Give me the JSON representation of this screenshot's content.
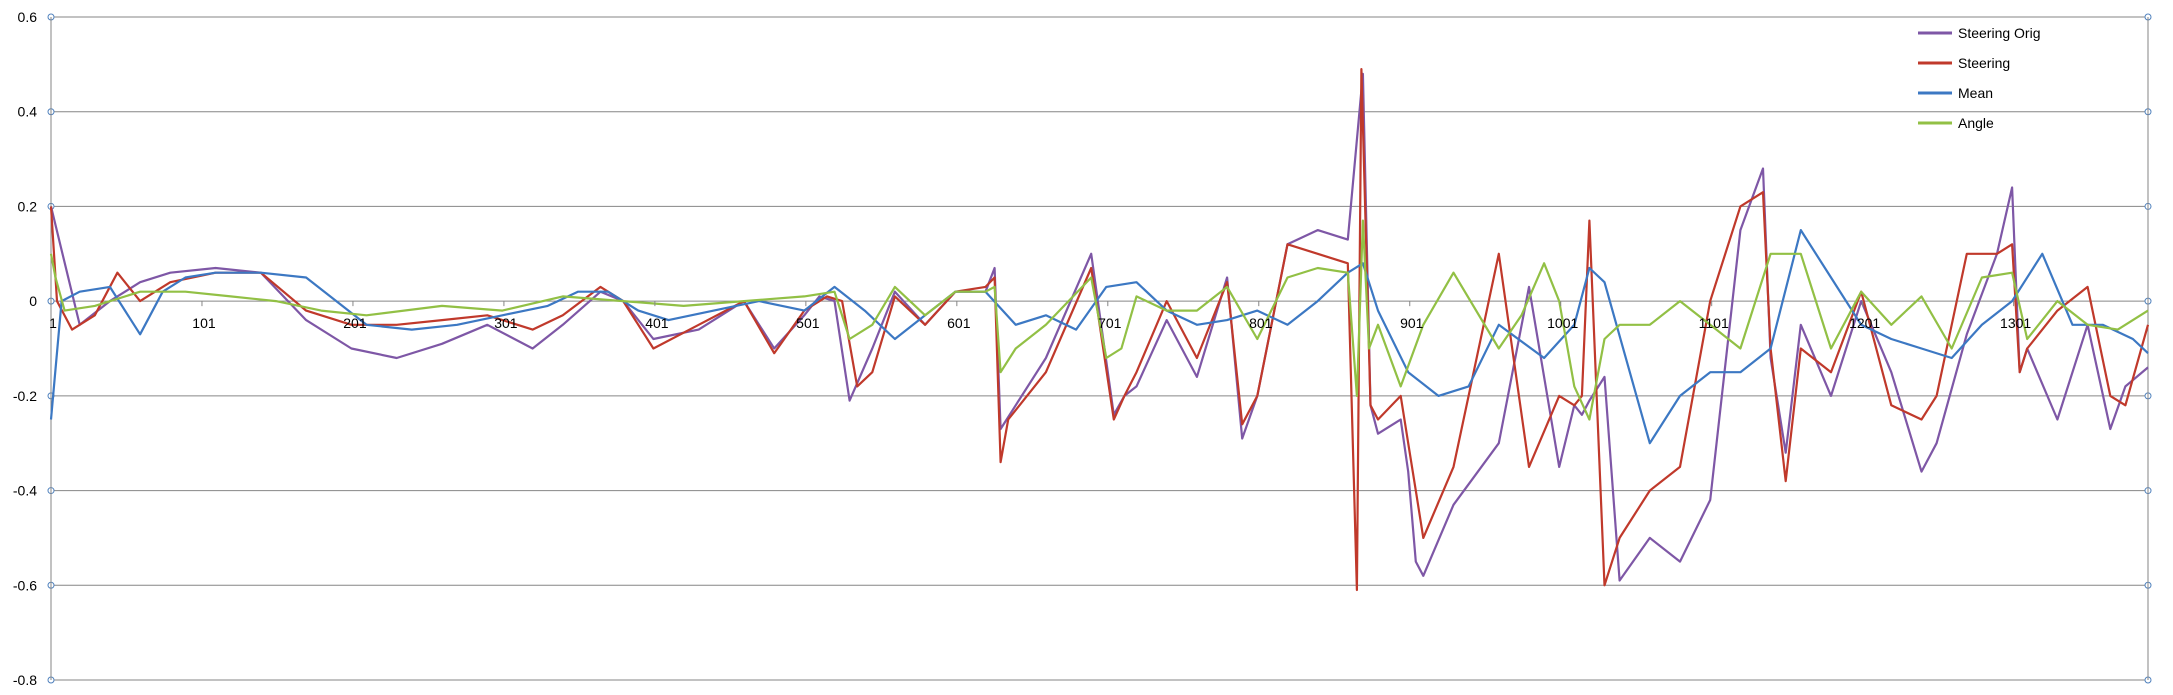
{
  "chart_data": {
    "type": "line",
    "title": "",
    "xlabel": "",
    "ylabel": "",
    "ylim": [
      -0.8,
      0.6
    ],
    "xlim": [
      1,
      1390
    ],
    "grid": true,
    "legend_position": "top-right",
    "y_ticks": [
      "0.6",
      "0.4",
      "0.2",
      "0",
      "-0.2",
      "-0.4",
      "-0.6",
      "-0.8"
    ],
    "y_tick_values": [
      0.6,
      0.4,
      0.2,
      0,
      -0.2,
      -0.4,
      -0.6,
      -0.8
    ],
    "x_ticks": [
      "1",
      "101",
      "201",
      "301",
      "401",
      "501",
      "601",
      "701",
      "801",
      "901",
      "1001",
      "1101",
      "1201",
      "1301"
    ],
    "x_tick_values": [
      1,
      101,
      201,
      301,
      401,
      501,
      601,
      701,
      801,
      901,
      1001,
      1101,
      1201,
      1301
    ],
    "colors": {
      "axis": "#868686",
      "grid": "#868686",
      "steering_orig": "#7E57A6",
      "steering": "#C0392B",
      "mean": "#3C78C3",
      "angle": "#92C045"
    },
    "series": [
      {
        "name": "Steering Orig",
        "color": "#7E57A6",
        "x": [
          1,
          20,
          40,
          60,
          80,
          110,
          140,
          170,
          200,
          230,
          260,
          290,
          320,
          340,
          365,
          380,
          400,
          430,
          460,
          480,
          500,
          510,
          520,
          530,
          545,
          560,
          580,
          600,
          620,
          626,
          630,
          640,
          660,
          690,
          705,
          712,
          720,
          740,
          760,
          780,
          790,
          800,
          820,
          840,
          860,
          870,
          875,
          880,
          895,
          900,
          905,
          910,
          930,
          960,
          980,
          1000,
          1010,
          1015,
          1020,
          1030,
          1040,
          1060,
          1080,
          1100,
          1120,
          1135,
          1140,
          1150,
          1160,
          1180,
          1200,
          1220,
          1240,
          1250,
          1270,
          1290,
          1300,
          1305,
          1310,
          1330,
          1350,
          1365,
          1375,
          1390
        ],
        "y": [
          0.2,
          -0.05,
          0.0,
          0.04,
          0.06,
          0.07,
          0.06,
          -0.04,
          -0.1,
          -0.12,
          -0.09,
          -0.05,
          -0.1,
          -0.05,
          0.02,
          0.0,
          -0.08,
          -0.06,
          0.0,
          -0.1,
          -0.03,
          0.01,
          0.0,
          -0.21,
          -0.1,
          0.02,
          -0.05,
          0.02,
          0.02,
          0.07,
          -0.27,
          -0.22,
          -0.12,
          0.1,
          -0.24,
          -0.2,
          -0.18,
          -0.04,
          -0.16,
          0.05,
          -0.29,
          -0.2,
          0.12,
          0.15,
          0.13,
          0.48,
          -0.22,
          -0.28,
          -0.25,
          -0.36,
          -0.55,
          -0.58,
          -0.43,
          -0.3,
          0.03,
          -0.35,
          -0.22,
          -0.24,
          -0.21,
          -0.16,
          -0.59,
          -0.5,
          -0.55,
          -0.42,
          0.15,
          0.28,
          -0.12,
          -0.32,
          -0.05,
          -0.2,
          0.0,
          -0.15,
          -0.36,
          -0.3,
          -0.07,
          0.1,
          0.24,
          -0.15,
          -0.1,
          -0.25,
          -0.05,
          -0.27,
          -0.18,
          -0.14
        ]
      },
      {
        "name": "Steering",
        "color": "#C0392B",
        "x": [
          1,
          5,
          15,
          30,
          45,
          60,
          80,
          110,
          140,
          170,
          200,
          230,
          260,
          290,
          320,
          340,
          365,
          380,
          400,
          430,
          460,
          480,
          500,
          515,
          525,
          535,
          545,
          560,
          580,
          600,
          620,
          626,
          630,
          635,
          660,
          690,
          705,
          712,
          720,
          740,
          760,
          780,
          790,
          800,
          820,
          840,
          860,
          866,
          869,
          875,
          880,
          895,
          900,
          905,
          910,
          930,
          960,
          980,
          1000,
          1010,
          1015,
          1020,
          1030,
          1040,
          1060,
          1080,
          1100,
          1120,
          1135,
          1140,
          1150,
          1160,
          1180,
          1200,
          1220,
          1240,
          1250,
          1270,
          1290,
          1300,
          1305,
          1310,
          1330,
          1350,
          1365,
          1375,
          1390
        ],
        "y": [
          0.2,
          0.0,
          -0.06,
          -0.03,
          0.06,
          0.0,
          0.04,
          0.06,
          0.06,
          -0.02,
          -0.05,
          -0.05,
          -0.04,
          -0.03,
          -0.06,
          -0.03,
          0.03,
          0.0,
          -0.1,
          -0.05,
          0.0,
          -0.11,
          -0.02,
          0.01,
          0.0,
          -0.18,
          -0.15,
          0.01,
          -0.05,
          0.02,
          0.03,
          0.05,
          -0.34,
          -0.25,
          -0.15,
          0.07,
          -0.25,
          -0.2,
          -0.15,
          0.0,
          -0.12,
          0.04,
          -0.26,
          -0.2,
          0.12,
          0.1,
          0.08,
          -0.61,
          0.49,
          -0.22,
          -0.25,
          -0.2,
          -0.3,
          -0.4,
          -0.5,
          -0.35,
          0.1,
          -0.35,
          -0.2,
          -0.22,
          -0.2,
          0.17,
          -0.6,
          -0.5,
          -0.4,
          -0.35,
          0.0,
          0.2,
          0.23,
          -0.1,
          -0.38,
          -0.1,
          -0.15,
          0.02,
          -0.22,
          -0.25,
          -0.2,
          0.1,
          0.1,
          0.12,
          -0.15,
          -0.1,
          -0.02,
          0.03,
          -0.2,
          -0.22,
          -0.05
        ]
      },
      {
        "name": "Mean",
        "color": "#3C78C3",
        "x": [
          1,
          8,
          20,
          40,
          60,
          75,
          90,
          110,
          140,
          170,
          190,
          210,
          240,
          270,
          300,
          330,
          350,
          370,
          390,
          410,
          440,
          470,
          500,
          520,
          540,
          560,
          580,
          600,
          620,
          640,
          660,
          680,
          700,
          720,
          740,
          760,
          780,
          800,
          820,
          840,
          860,
          870,
          880,
          900,
          920,
          940,
          960,
          990,
          1010,
          1020,
          1030,
          1060,
          1080,
          1100,
          1120,
          1140,
          1160,
          1180,
          1200,
          1220,
          1240,
          1260,
          1280,
          1300,
          1320,
          1340,
          1360,
          1380,
          1390
        ],
        "y": [
          -0.25,
          0.0,
          0.02,
          0.03,
          -0.07,
          0.02,
          0.05,
          0.06,
          0.06,
          0.05,
          0.0,
          -0.05,
          -0.06,
          -0.05,
          -0.03,
          -0.01,
          0.02,
          0.02,
          -0.02,
          -0.04,
          -0.02,
          0.0,
          -0.02,
          0.03,
          -0.02,
          -0.08,
          -0.03,
          0.02,
          0.02,
          -0.05,
          -0.03,
          -0.06,
          0.03,
          0.04,
          -0.02,
          -0.05,
          -0.04,
          -0.02,
          -0.05,
          0.0,
          0.06,
          0.08,
          -0.02,
          -0.15,
          -0.2,
          -0.18,
          -0.05,
          -0.12,
          -0.05,
          0.07,
          0.04,
          -0.3,
          -0.2,
          -0.15,
          -0.15,
          -0.1,
          0.15,
          0.05,
          -0.05,
          -0.08,
          -0.1,
          -0.12,
          -0.05,
          0.0,
          0.1,
          -0.05,
          -0.05,
          -0.08,
          -0.11
        ]
      },
      {
        "name": "Angle",
        "color": "#92C045",
        "x": [
          1,
          4,
          10,
          30,
          60,
          90,
          120,
          150,
          180,
          210,
          260,
          300,
          340,
          380,
          420,
          460,
          500,
          520,
          530,
          545,
          560,
          580,
          600,
          620,
          626,
          630,
          640,
          660,
          690,
          700,
          710,
          720,
          740,
          760,
          780,
          800,
          820,
          840,
          860,
          866,
          870,
          874,
          880,
          895,
          910,
          930,
          960,
          975,
          990,
          1000,
          1010,
          1020,
          1030,
          1040,
          1060,
          1080,
          1100,
          1120,
          1140,
          1160,
          1180,
          1200,
          1220,
          1240,
          1260,
          1280,
          1300,
          1310,
          1330,
          1350,
          1370,
          1390
        ],
        "y": [
          0.1,
          0.05,
          -0.02,
          -0.01,
          0.02,
          0.02,
          0.01,
          0.0,
          -0.02,
          -0.03,
          -0.01,
          -0.02,
          0.01,
          0.0,
          -0.01,
          0.0,
          0.01,
          0.02,
          -0.08,
          -0.05,
          0.03,
          -0.03,
          0.02,
          0.02,
          0.03,
          -0.15,
          -0.1,
          -0.05,
          0.05,
          -0.12,
          -0.1,
          0.01,
          -0.02,
          -0.02,
          0.03,
          -0.08,
          0.05,
          0.07,
          0.06,
          -0.2,
          0.17,
          -0.1,
          -0.05,
          -0.18,
          -0.05,
          0.06,
          -0.1,
          -0.03,
          0.08,
          0.0,
          -0.18,
          -0.25,
          -0.08,
          -0.05,
          -0.05,
          0.0,
          -0.05,
          -0.1,
          0.1,
          0.1,
          -0.1,
          0.02,
          -0.05,
          0.01,
          -0.1,
          0.05,
          0.06,
          -0.08,
          0.0,
          -0.05,
          -0.06,
          -0.02
        ]
      }
    ]
  }
}
